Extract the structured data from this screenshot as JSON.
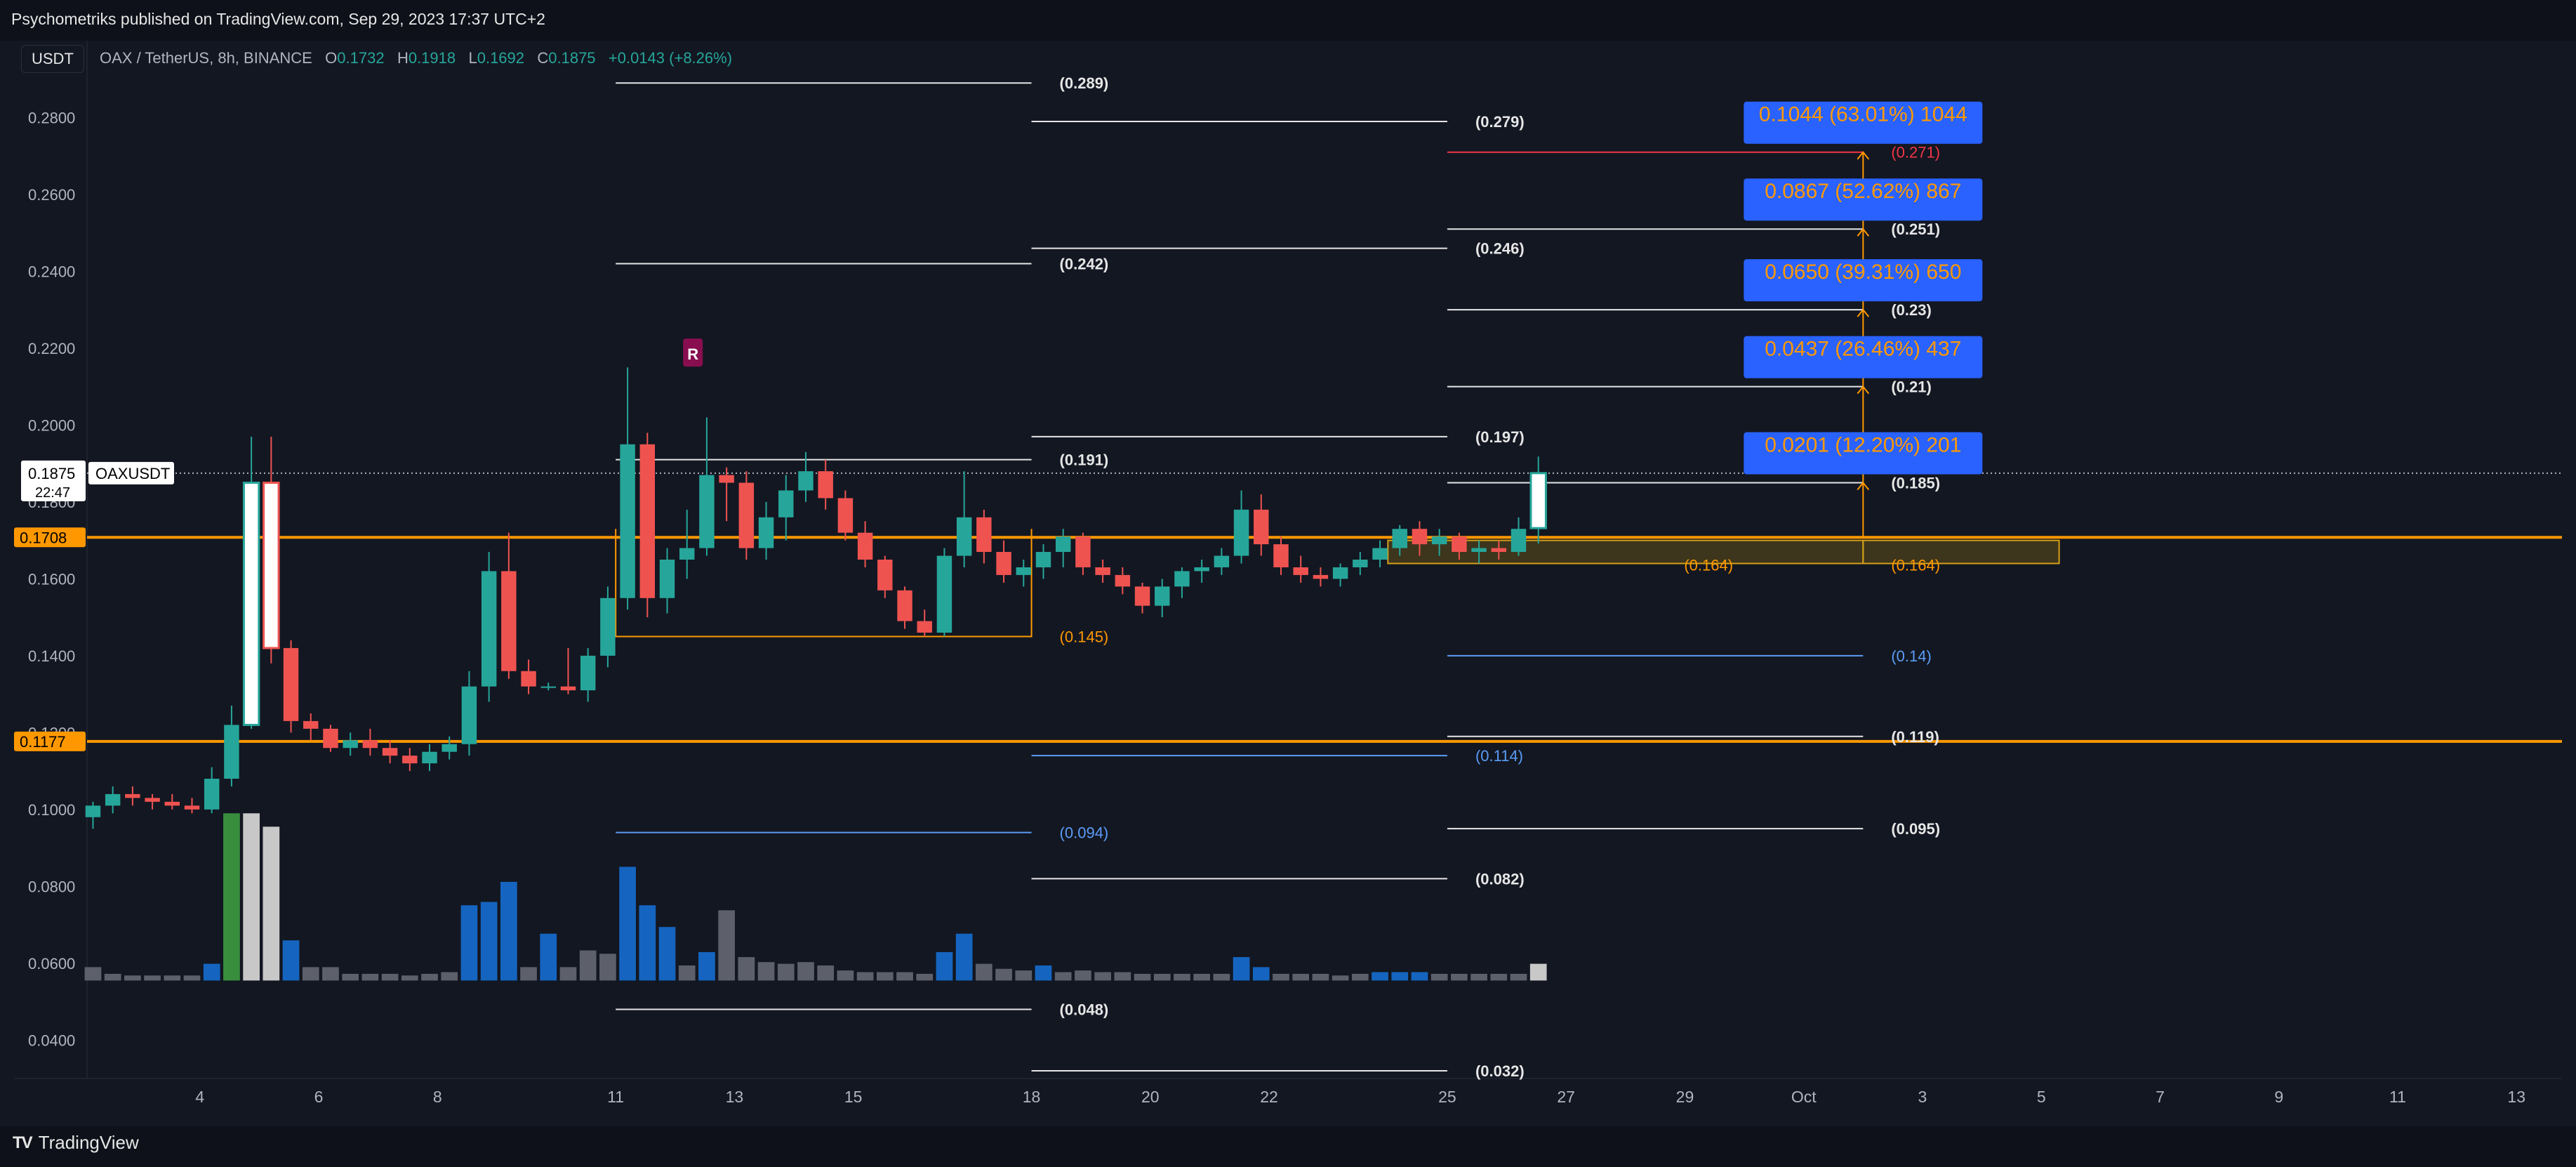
{
  "header": {
    "published": "Psychometriks published on TradingView.com, Sep 29, 2023 17:37 UTC+2"
  },
  "currency": "USDT",
  "legend": {
    "symbol": "OAX / TetherUS, 8h, BINANCE",
    "o_label": "O",
    "o": "0.1732",
    "h_label": "H",
    "h": "0.1918",
    "l_label": "L",
    "l": "0.1692",
    "c_label": "C",
    "c": "0.1875",
    "change": "+0.0143 (+8.26%)"
  },
  "brand": {
    "icon": "tradingview-logo-icon",
    "name": "TradingView"
  },
  "colors": {
    "up": "#26a69a",
    "down": "#ef5350",
    "orange": "#ff9800",
    "blue": "#2962ff",
    "bg": "#131722"
  },
  "chart_data": {
    "type": "candlestick",
    "symbol": "OAXUSDT",
    "ylim": [
      0.03,
      0.3
    ],
    "y_ticks": [
      "0.2800",
      "0.2600",
      "0.2400",
      "0.2200",
      "0.2000",
      "0.1800",
      "0.1600",
      "0.1400",
      "0.1200",
      "0.1000",
      "0.0800",
      "0.0600",
      "0.0400"
    ],
    "x_ticks": [
      "4",
      "6",
      "8",
      "11",
      "13",
      "15",
      "18",
      "20",
      "22",
      "25",
      "27",
      "29",
      "Oct",
      "3",
      "5",
      "7",
      "9",
      "11",
      "13"
    ],
    "x_tick_days": [
      4,
      6,
      8,
      11,
      13,
      15,
      18,
      20,
      22,
      25,
      27,
      29,
      31,
      33,
      35,
      37,
      39,
      41,
      43
    ],
    "x_range_days": [
      2.1,
      43.6
    ],
    "candles": [
      [
        0.098,
        0.102,
        0.095,
        0.101
      ],
      [
        0.101,
        0.106,
        0.099,
        0.104
      ],
      [
        0.104,
        0.106,
        0.101,
        0.103
      ],
      [
        0.103,
        0.104,
        0.1,
        0.102
      ],
      [
        0.102,
        0.104,
        0.1,
        0.101
      ],
      [
        0.101,
        0.103,
        0.099,
        0.1
      ],
      [
        0.1,
        0.111,
        0.099,
        0.108
      ],
      [
        0.108,
        0.127,
        0.106,
        0.122
      ],
      [
        0.122,
        0.197,
        0.121,
        0.185
      ],
      [
        0.185,
        0.197,
        0.138,
        0.142
      ],
      [
        0.142,
        0.144,
        0.12,
        0.123
      ],
      [
        0.123,
        0.125,
        0.118,
        0.121
      ],
      [
        0.121,
        0.122,
        0.115,
        0.116
      ],
      [
        0.116,
        0.12,
        0.114,
        0.118
      ],
      [
        0.118,
        0.121,
        0.114,
        0.116
      ],
      [
        0.116,
        0.118,
        0.112,
        0.114
      ],
      [
        0.114,
        0.116,
        0.11,
        0.112
      ],
      [
        0.112,
        0.117,
        0.11,
        0.115
      ],
      [
        0.115,
        0.119,
        0.113,
        0.117
      ],
      [
        0.117,
        0.136,
        0.114,
        0.132
      ],
      [
        0.132,
        0.167,
        0.128,
        0.162
      ],
      [
        0.162,
        0.172,
        0.134,
        0.136
      ],
      [
        0.136,
        0.139,
        0.13,
        0.132
      ],
      [
        0.132,
        0.133,
        0.131,
        0.132
      ],
      [
        0.132,
        0.142,
        0.13,
        0.131
      ],
      [
        0.131,
        0.142,
        0.128,
        0.14
      ],
      [
        0.14,
        0.158,
        0.137,
        0.155
      ],
      [
        0.155,
        0.215,
        0.152,
        0.195
      ],
      [
        0.195,
        0.198,
        0.15,
        0.155
      ],
      [
        0.155,
        0.168,
        0.151,
        0.165
      ],
      [
        0.165,
        0.178,
        0.16,
        0.168
      ],
      [
        0.168,
        0.202,
        0.166,
        0.187
      ],
      [
        0.187,
        0.189,
        0.175,
        0.185
      ],
      [
        0.185,
        0.188,
        0.165,
        0.168
      ],
      [
        0.168,
        0.18,
        0.165,
        0.176
      ],
      [
        0.176,
        0.187,
        0.17,
        0.183
      ],
      [
        0.183,
        0.193,
        0.18,
        0.188
      ],
      [
        0.188,
        0.191,
        0.178,
        0.181
      ],
      [
        0.181,
        0.183,
        0.17,
        0.172
      ],
      [
        0.172,
        0.175,
        0.163,
        0.165
      ],
      [
        0.165,
        0.166,
        0.155,
        0.157
      ],
      [
        0.157,
        0.158,
        0.147,
        0.149
      ],
      [
        0.149,
        0.152,
        0.145,
        0.146
      ],
      [
        0.146,
        0.168,
        0.145,
        0.166
      ],
      [
        0.166,
        0.188,
        0.163,
        0.176
      ],
      [
        0.176,
        0.178,
        0.164,
        0.167
      ],
      [
        0.167,
        0.17,
        0.159,
        0.161
      ],
      [
        0.161,
        0.165,
        0.158,
        0.163
      ],
      [
        0.163,
        0.169,
        0.16,
        0.167
      ],
      [
        0.167,
        0.173,
        0.163,
        0.171
      ],
      [
        0.171,
        0.172,
        0.161,
        0.163
      ],
      [
        0.163,
        0.165,
        0.159,
        0.161
      ],
      [
        0.161,
        0.163,
        0.156,
        0.158
      ],
      [
        0.158,
        0.159,
        0.151,
        0.153
      ],
      [
        0.153,
        0.16,
        0.15,
        0.158
      ],
      [
        0.158,
        0.163,
        0.155,
        0.162
      ],
      [
        0.162,
        0.165,
        0.159,
        0.163
      ],
      [
        0.163,
        0.168,
        0.161,
        0.166
      ],
      [
        0.166,
        0.183,
        0.164,
        0.178
      ],
      [
        0.178,
        0.182,
        0.166,
        0.169
      ],
      [
        0.169,
        0.171,
        0.161,
        0.163
      ],
      [
        0.163,
        0.166,
        0.159,
        0.161
      ],
      [
        0.161,
        0.163,
        0.158,
        0.16
      ],
      [
        0.16,
        0.164,
        0.158,
        0.163
      ],
      [
        0.163,
        0.167,
        0.161,
        0.165
      ],
      [
        0.165,
        0.17,
        0.163,
        0.168
      ],
      [
        0.168,
        0.174,
        0.166,
        0.173
      ],
      [
        0.173,
        0.175,
        0.166,
        0.169
      ],
      [
        0.169,
        0.173,
        0.166,
        0.171
      ],
      [
        0.171,
        0.172,
        0.165,
        0.167
      ],
      [
        0.167,
        0.17,
        0.164,
        0.168
      ],
      [
        0.168,
        0.17,
        0.165,
        0.167
      ],
      [
        0.167,
        0.176,
        0.166,
        0.173
      ],
      [
        0.1732,
        0.1918,
        0.1692,
        0.1875
      ]
    ],
    "candle_start_day": 2.2,
    "candles_per_day": 3,
    "volume_max": 100,
    "volumes": [
      8,
      4,
      3,
      3,
      3,
      3,
      10,
      100,
      100,
      92,
      24,
      8,
      8,
      4,
      4,
      4,
      3,
      4,
      5,
      45,
      47,
      59,
      8,
      28,
      8,
      18,
      16,
      68,
      45,
      32,
      9,
      17,
      42,
      14,
      11,
      10,
      11,
      9,
      6,
      5,
      5,
      5,
      4,
      17,
      28,
      10,
      7,
      6,
      9,
      5,
      6,
      5,
      5,
      4,
      4,
      4,
      4,
      4,
      14,
      8,
      4,
      4,
      4,
      3,
      4,
      5,
      5,
      5,
      4,
      4,
      4,
      4,
      4,
      10
    ],
    "volume_colors": [
      "gray",
      "gray",
      "gray",
      "gray",
      "gray",
      "gray",
      "blue",
      "green",
      "light",
      "light",
      "blue",
      "gray",
      "gray",
      "gray",
      "gray",
      "gray",
      "gray",
      "gray",
      "gray",
      "blue",
      "blue",
      "blue",
      "gray",
      "blue",
      "gray",
      "gray",
      "gray",
      "blue",
      "blue",
      "blue",
      "gray",
      "blue",
      "gray",
      "gray",
      "gray",
      "gray",
      "gray",
      "gray",
      "gray",
      "gray",
      "gray",
      "gray",
      "gray",
      "blue",
      "blue",
      "gray",
      "gray",
      "gray",
      "blue",
      "gray",
      "gray",
      "gray",
      "gray",
      "gray",
      "gray",
      "gray",
      "gray",
      "gray",
      "blue",
      "blue",
      "gray",
      "gray",
      "gray",
      "gray",
      "gray",
      "blue",
      "blue",
      "blue",
      "gray",
      "gray",
      "gray",
      "gray",
      "gray",
      "light"
    ],
    "horizontal_lines": [
      {
        "price": 0.1708,
        "label": "0.1708",
        "color": "#ff9800"
      },
      {
        "price": 0.1177,
        "label": "0.1177",
        "color": "#ff9800"
      }
    ],
    "current_price": {
      "label": "0.1875",
      "countdown": "22:47",
      "symbol": "OAXUSDT",
      "price": 0.1875
    },
    "levels": [
      {
        "from": 11,
        "to": 18,
        "price": 0.289,
        "text": "(0.289)",
        "color": "white"
      },
      {
        "from": 18,
        "to": 25,
        "price": 0.279,
        "text": "(0.279)",
        "color": "white"
      },
      {
        "from": 25,
        "to": 32,
        "price": 0.271,
        "text": "(0.271)",
        "color": "red"
      },
      {
        "from": 25,
        "to": 32,
        "price": 0.251,
        "text": "(0.251)",
        "color": "white"
      },
      {
        "from": 18,
        "to": 25,
        "price": 0.246,
        "text": "(0.246)",
        "color": "white"
      },
      {
        "from": 11,
        "to": 18,
        "price": 0.242,
        "text": "(0.242)",
        "color": "white"
      },
      {
        "from": 25,
        "to": 32,
        "price": 0.23,
        "text": "(0.23)",
        "color": "white"
      },
      {
        "from": 25,
        "to": 32,
        "price": 0.21,
        "text": "(0.21)",
        "color": "white"
      },
      {
        "from": 18,
        "to": 25,
        "price": 0.197,
        "text": "(0.197)",
        "color": "white"
      },
      {
        "from": 11,
        "to": 18,
        "price": 0.191,
        "text": "(0.191)",
        "color": "white"
      },
      {
        "from": 25,
        "to": 32,
        "price": 0.185,
        "text": "(0.185)",
        "color": "white"
      },
      {
        "from": 11,
        "to": 18,
        "price": 0.145,
        "text": "(0.145)",
        "color": "orange"
      },
      {
        "from": 25,
        "to": 32,
        "price": 0.14,
        "text": "(0.14)",
        "color": "blue"
      },
      {
        "from": 25,
        "to": 32,
        "price": 0.119,
        "text": "(0.119)",
        "color": "white"
      },
      {
        "from": 18,
        "to": 25,
        "price": 0.114,
        "text": "(0.114)",
        "color": "blue"
      },
      {
        "from": 25,
        "to": 32,
        "price": 0.095,
        "text": "(0.095)",
        "color": "white"
      },
      {
        "from": 11,
        "to": 18,
        "price": 0.094,
        "text": "(0.094)",
        "color": "blue"
      },
      {
        "from": 18,
        "to": 25,
        "price": 0.082,
        "text": "(0.082)",
        "color": "white"
      },
      {
        "from": 11,
        "to": 18,
        "price": 0.048,
        "text": "(0.048)",
        "color": "white"
      },
      {
        "from": 18,
        "to": 25,
        "price": 0.032,
        "text": "(0.032)",
        "color": "white"
      }
    ],
    "zones": [
      {
        "from": 24,
        "to": 32,
        "lo": 0.164,
        "hi": 0.17,
        "text": "(0.164)"
      },
      {
        "from": 32,
        "to": 35.3,
        "lo": 0.164,
        "hi": 0.17,
        "text": "(0.164)"
      }
    ],
    "bracket_145": {
      "from": 11,
      "to": 18,
      "top": 0.173,
      "bottom": 0.145
    },
    "targets": [
      {
        "price": 0.271,
        "text": "0.1044 (63.01%) 1044"
      },
      {
        "price": 0.251,
        "text": "0.0867 (52.62%) 867"
      },
      {
        "price": 0.23,
        "text": "0.0650 (39.31%) 650"
      },
      {
        "price": 0.21,
        "text": "0.0437 (26.46%) 437"
      },
      {
        "price": 0.185,
        "text": "0.0201 (12.20%) 201"
      }
    ],
    "target_base_price": 0.1708,
    "target_column_day": 32,
    "marker": {
      "day": 12.3,
      "price": 0.2185,
      "text": "R"
    }
  }
}
